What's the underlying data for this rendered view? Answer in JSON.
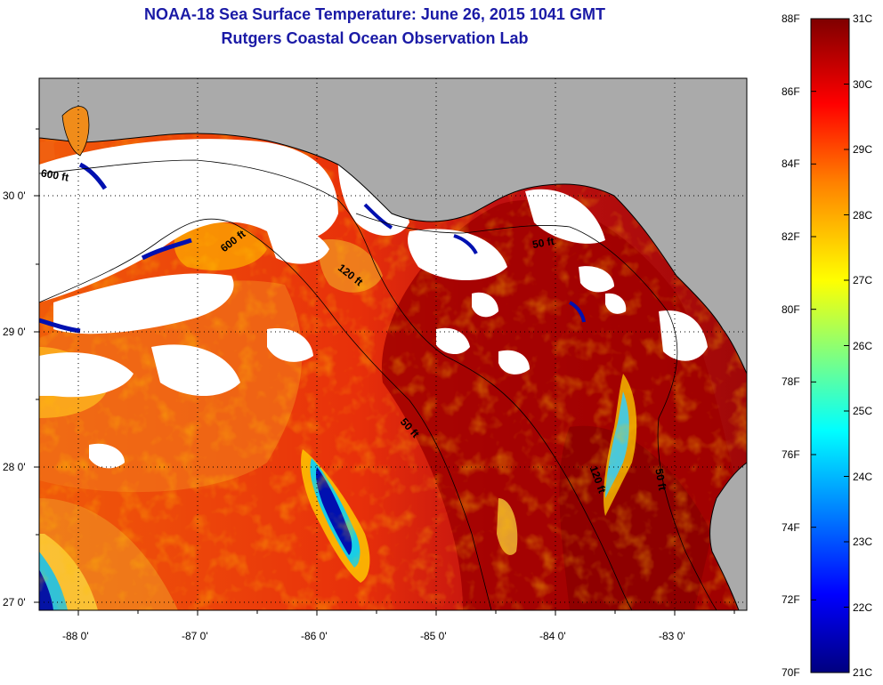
{
  "title": "NOAA-18 Sea Surface Temperature:  June 26, 2015 1041 GMT",
  "subtitle": "Rutgers Coastal Ocean Observation Lab",
  "axes": {
    "lon_labels": [
      "-88 0'",
      "-87 0'",
      "-86 0'",
      "-85 0'",
      "-84 0'",
      "-83 0'"
    ],
    "lat_labels": [
      "30 0'",
      "29 0'",
      "28 0'",
      "27 0'"
    ]
  },
  "contours": [
    "600 ft",
    "600 ft",
    "120 ft",
    "50 ft",
    "50 ft",
    "120 ft",
    "50 ft"
  ],
  "colorbar": {
    "fahrenheit": [
      "88F",
      "86F",
      "84F",
      "82F",
      "80F",
      "78F",
      "76F",
      "74F",
      "72F",
      "70F"
    ],
    "celsius": [
      "31C",
      "30C",
      "29C",
      "28C",
      "27C",
      "26C",
      "25C",
      "24C",
      "23C",
      "22C",
      "21C"
    ],
    "range_f": [
      70,
      88
    ],
    "range_c": [
      21,
      31
    ]
  },
  "colors": {
    "land": "#aaaaaa",
    "cloud": "#ffffff",
    "title": "#1a1aa6",
    "gradient": [
      "#00007f",
      "#0000ff",
      "#00ffff",
      "#ffff00",
      "#ff8000",
      "#ff0000",
      "#7f0000"
    ]
  }
}
